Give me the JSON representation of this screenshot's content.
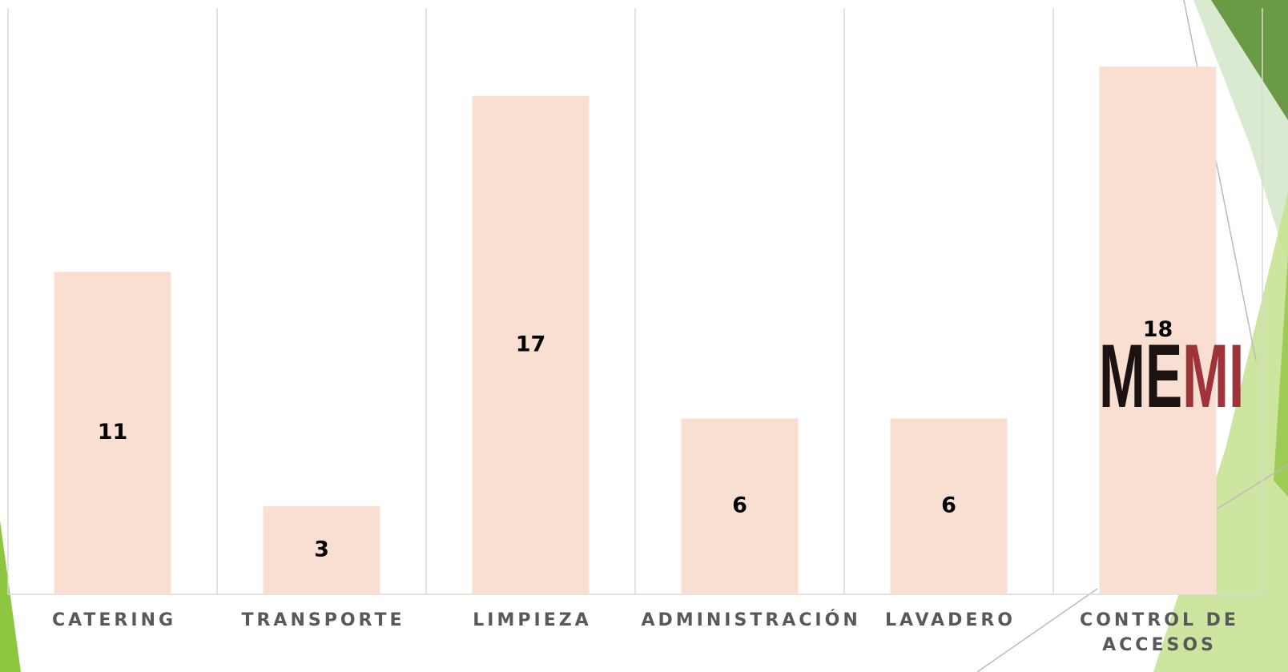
{
  "chart_data": {
    "type": "bar",
    "categories": [
      "CATERING",
      "TRANSPORTE",
      "LIMPIEZA",
      "ADMINISTRACIÓN",
      "LAVADERO",
      "CONTROL DE ACCESOS"
    ],
    "values": [
      11,
      3,
      17,
      6,
      6,
      18
    ],
    "color": "#f9dfd2",
    "ylim": [
      0,
      20
    ]
  },
  "logo": {
    "dark": "ME",
    "red": "MI"
  }
}
